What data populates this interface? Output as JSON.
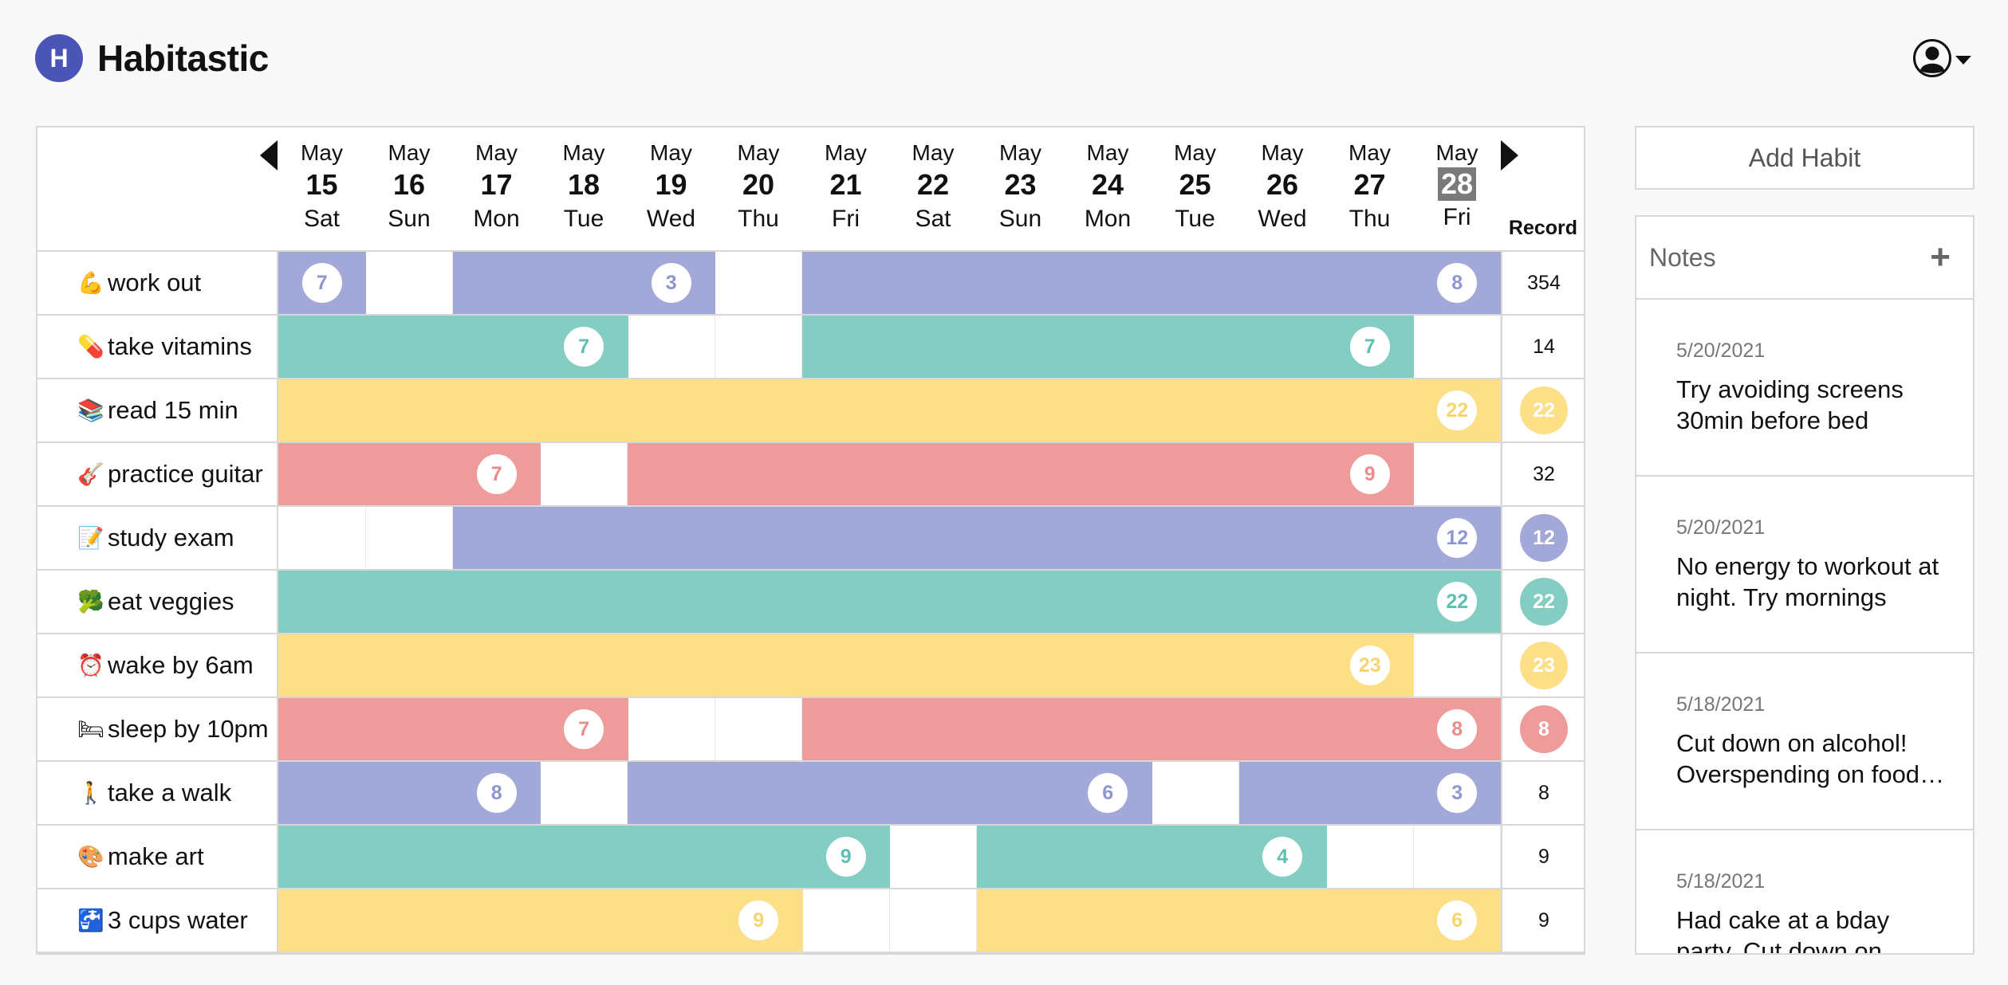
{
  "app": {
    "logo_letter": "H",
    "title": "Habitastic"
  },
  "colors": {
    "blue": "#a2a9d9",
    "teal": "#84cdc3",
    "yellow": "#fddf88",
    "red": "#ee9b9b",
    "blue_text": "#8e96cf",
    "teal_text": "#5fbfb2",
    "yellow_text": "#f6d470",
    "red_text": "#e88c8c",
    "accent": "#4a55b5"
  },
  "calendar": {
    "days": [
      {
        "month": "May",
        "date": "15",
        "weekday": "Sat"
      },
      {
        "month": "May",
        "date": "16",
        "weekday": "Sun"
      },
      {
        "month": "May",
        "date": "17",
        "weekday": "Mon"
      },
      {
        "month": "May",
        "date": "18",
        "weekday": "Tue"
      },
      {
        "month": "May",
        "date": "19",
        "weekday": "Wed"
      },
      {
        "month": "May",
        "date": "20",
        "weekday": "Thu"
      },
      {
        "month": "May",
        "date": "21",
        "weekday": "Fri"
      },
      {
        "month": "May",
        "date": "22",
        "weekday": "Sat"
      },
      {
        "month": "May",
        "date": "23",
        "weekday": "Sun"
      },
      {
        "month": "May",
        "date": "24",
        "weekday": "Mon"
      },
      {
        "month": "May",
        "date": "25",
        "weekday": "Tue"
      },
      {
        "month": "May",
        "date": "26",
        "weekday": "Wed"
      },
      {
        "month": "May",
        "date": "27",
        "weekday": "Thu"
      },
      {
        "month": "May",
        "date": "28",
        "weekday": "Fri",
        "today": true
      }
    ],
    "record_label": "Record"
  },
  "habits": [
    {
      "emoji": "💪",
      "name": "work out",
      "color": "blue",
      "done": [
        1,
        0,
        1,
        1,
        1,
        0,
        1,
        1,
        1,
        1,
        1,
        1,
        1,
        1
      ],
      "streaks": [
        {
          "day": 0,
          "n": "7"
        },
        {
          "day": 4,
          "n": "3"
        },
        {
          "day": 13,
          "n": "8"
        }
      ],
      "record": "354",
      "record_highlight": false
    },
    {
      "emoji": "💊",
      "name": "take vitamins",
      "color": "teal",
      "done": [
        1,
        1,
        1,
        1,
        0,
        0,
        1,
        1,
        1,
        1,
        1,
        1,
        1,
        0
      ],
      "streaks": [
        {
          "day": 3,
          "n": "7"
        },
        {
          "day": 12,
          "n": "7"
        }
      ],
      "record": "14",
      "record_highlight": false
    },
    {
      "emoji": "📚",
      "name": "read 15 min",
      "color": "yellow",
      "done": [
        1,
        1,
        1,
        1,
        1,
        1,
        1,
        1,
        1,
        1,
        1,
        1,
        1,
        1
      ],
      "streaks": [
        {
          "day": 13,
          "n": "22"
        }
      ],
      "record": "22",
      "record_highlight": true
    },
    {
      "emoji": "🎸",
      "name": "practice guitar",
      "color": "red",
      "done": [
        1,
        1,
        1,
        0,
        1,
        1,
        1,
        1,
        1,
        1,
        1,
        1,
        1,
        0
      ],
      "streaks": [
        {
          "day": 2,
          "n": "7"
        },
        {
          "day": 12,
          "n": "9"
        }
      ],
      "record": "32",
      "record_highlight": false
    },
    {
      "emoji": "📝",
      "name": "study exam",
      "color": "blue",
      "done": [
        0,
        0,
        1,
        1,
        1,
        1,
        1,
        1,
        1,
        1,
        1,
        1,
        1,
        1
      ],
      "streaks": [
        {
          "day": 13,
          "n": "12"
        }
      ],
      "record": "12",
      "record_highlight": true
    },
    {
      "emoji": "🥦",
      "name": "eat veggies",
      "color": "teal",
      "done": [
        1,
        1,
        1,
        1,
        1,
        1,
        1,
        1,
        1,
        1,
        1,
        1,
        1,
        1
      ],
      "streaks": [
        {
          "day": 13,
          "n": "22"
        }
      ],
      "record": "22",
      "record_highlight": true
    },
    {
      "emoji": "⏰",
      "name": "wake by 6am",
      "color": "yellow",
      "done": [
        1,
        1,
        1,
        1,
        1,
        1,
        1,
        1,
        1,
        1,
        1,
        1,
        1,
        0
      ],
      "streaks": [
        {
          "day": 12,
          "n": "23"
        }
      ],
      "record": "23",
      "record_highlight": true
    },
    {
      "emoji": "🛏",
      "name": "sleep by 10pm",
      "color": "red",
      "done": [
        1,
        1,
        1,
        1,
        0,
        0,
        1,
        1,
        1,
        1,
        1,
        1,
        1,
        1
      ],
      "streaks": [
        {
          "day": 3,
          "n": "7"
        },
        {
          "day": 13,
          "n": "8"
        }
      ],
      "record": "8",
      "record_highlight": true
    },
    {
      "emoji": "🚶",
      "name": "take a walk",
      "color": "blue",
      "done": [
        1,
        1,
        1,
        0,
        1,
        1,
        1,
        1,
        1,
        1,
        0,
        1,
        1,
        1
      ],
      "streaks": [
        {
          "day": 2,
          "n": "8"
        },
        {
          "day": 9,
          "n": "6"
        },
        {
          "day": 13,
          "n": "3"
        }
      ],
      "record": "8",
      "record_highlight": false
    },
    {
      "emoji": "🎨",
      "name": "make art",
      "color": "teal",
      "done": [
        1,
        1,
        1,
        1,
        1,
        1,
        1,
        0,
        1,
        1,
        1,
        1,
        0,
        0
      ],
      "streaks": [
        {
          "day": 6,
          "n": "9"
        },
        {
          "day": 11,
          "n": "4"
        }
      ],
      "record": "9",
      "record_highlight": false
    },
    {
      "emoji": "🚰",
      "name": "3 cups water",
      "color": "yellow",
      "done": [
        1,
        1,
        1,
        1,
        1,
        1,
        0,
        0,
        1,
        1,
        1,
        1,
        1,
        1
      ],
      "streaks": [
        {
          "day": 5,
          "n": "9"
        },
        {
          "day": 13,
          "n": "6"
        }
      ],
      "record": "9",
      "record_highlight": false
    }
  ],
  "sidebar": {
    "add_habit_label": "Add Habit",
    "notes_title": "Notes",
    "notes": [
      {
        "date": "5/20/2021",
        "text": "Try avoiding screens 30min before bed"
      },
      {
        "date": "5/20/2021",
        "text": "No energy to workout at night. Try mornings"
      },
      {
        "date": "5/18/2021",
        "text": "Cut down on alcohol! Overspending on food and drinks"
      },
      {
        "date": "5/18/2021",
        "text": "Had cake at a bday party. Cut down on sugar"
      }
    ]
  }
}
